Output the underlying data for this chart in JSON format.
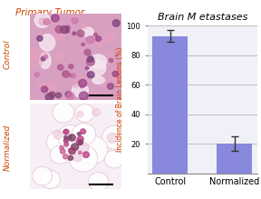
{
  "title": "Brain M etastases",
  "left_title": "Primary Tumor",
  "categories": [
    "Control",
    "Normalized"
  ],
  "values": [
    93,
    20
  ],
  "errors": [
    4,
    5
  ],
  "bar_color": "#8888dd",
  "ylabel": "Incidence of Brain Lesions (%)",
  "ylim": [
    0,
    100
  ],
  "yticks": [
    20,
    40,
    60,
    80,
    100
  ],
  "title_color": "#000000",
  "left_title_color": "#cc4400",
  "ylabel_color": "#cc4400",
  "control_label_color": "#cc4400",
  "normalized_label_color": "#cc4400",
  "grid_color": "#aaaaaa",
  "background_color": "#f0f0f8",
  "figsize": [
    2.88,
    2.19
  ],
  "dpi": 100
}
